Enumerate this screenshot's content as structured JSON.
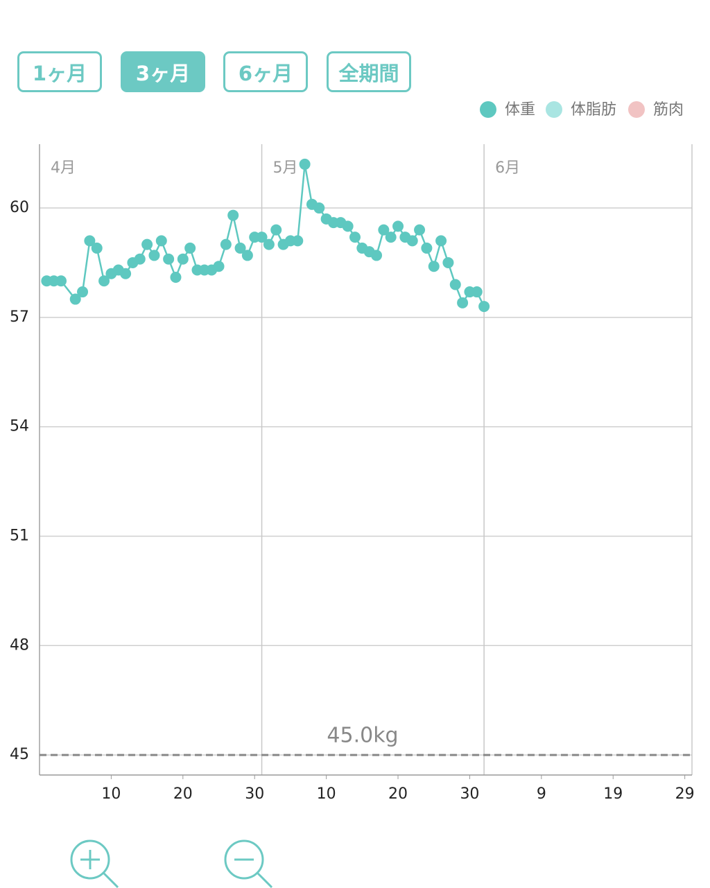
{
  "period_buttons": {
    "labels": [
      "1ヶ月",
      "3ヶ月",
      "6ヶ月",
      "全期間"
    ],
    "selected": 1
  },
  "chart_data": {
    "type": "line",
    "legend": [
      {
        "name": "体重",
        "color": "#5ec8c0"
      },
      {
        "name": "体脂肪",
        "color": "#a9e5e2"
      },
      {
        "name": "筋肉",
        "color": "#f1c3c3"
      }
    ],
    "series": [
      {
        "name": "体重",
        "color": "#5ec8c0",
        "x": [
          1,
          2,
          3,
          5,
          6,
          7,
          8,
          9,
          10,
          11,
          12,
          13,
          14,
          15,
          16,
          17,
          18,
          19,
          20,
          21,
          22,
          23,
          24,
          25,
          26,
          27,
          28,
          29,
          30,
          31,
          32,
          33,
          34,
          35,
          36,
          37,
          38,
          39,
          40,
          41,
          42,
          43,
          44,
          45,
          46,
          47,
          48,
          49,
          50,
          51,
          52,
          53,
          54,
          55,
          56,
          57,
          58,
          59,
          60,
          61,
          62
        ],
        "values": [
          58.0,
          58.0,
          58.0,
          57.5,
          57.7,
          59.1,
          58.9,
          58.0,
          58.2,
          58.3,
          58.2,
          58.5,
          58.6,
          59.0,
          58.7,
          59.1,
          58.6,
          58.1,
          58.6,
          58.9,
          58.3,
          58.3,
          58.3,
          58.4,
          59.0,
          59.8,
          58.9,
          58.7,
          59.2,
          59.2,
          59.0,
          59.4,
          59.0,
          59.1,
          59.1,
          61.2,
          60.1,
          60.0,
          59.7,
          59.6,
          59.6,
          59.5,
          59.2,
          58.9,
          58.8,
          58.7,
          59.4,
          59.2,
          59.5,
          59.2,
          59.1,
          59.4,
          58.9,
          58.4,
          59.1,
          58.5,
          57.9,
          57.4,
          57.7,
          57.7,
          57.3
        ]
      }
    ],
    "xlim": [
      0,
      91
    ],
    "xticks": [
      {
        "value": 10,
        "label": "10"
      },
      {
        "value": 20,
        "label": "20"
      },
      {
        "value": 30,
        "label": "30"
      },
      {
        "value": 40,
        "label": "10"
      },
      {
        "value": 50,
        "label": "20"
      },
      {
        "value": 60,
        "label": "30"
      },
      {
        "value": 70,
        "label": "9"
      },
      {
        "value": 80,
        "label": "19"
      },
      {
        "value": 90,
        "label": "29"
      }
    ],
    "months": [
      {
        "value": 0,
        "label": "4月"
      },
      {
        "value": 31,
        "label": "5月"
      },
      {
        "value": 62,
        "label": "6月"
      }
    ],
    "ylim": [
      44.45,
      61.75
    ],
    "yticks": [
      45,
      48,
      51,
      54,
      57,
      60
    ],
    "grid": true,
    "reference_line": {
      "value": 45,
      "label": "45.0kg"
    }
  }
}
